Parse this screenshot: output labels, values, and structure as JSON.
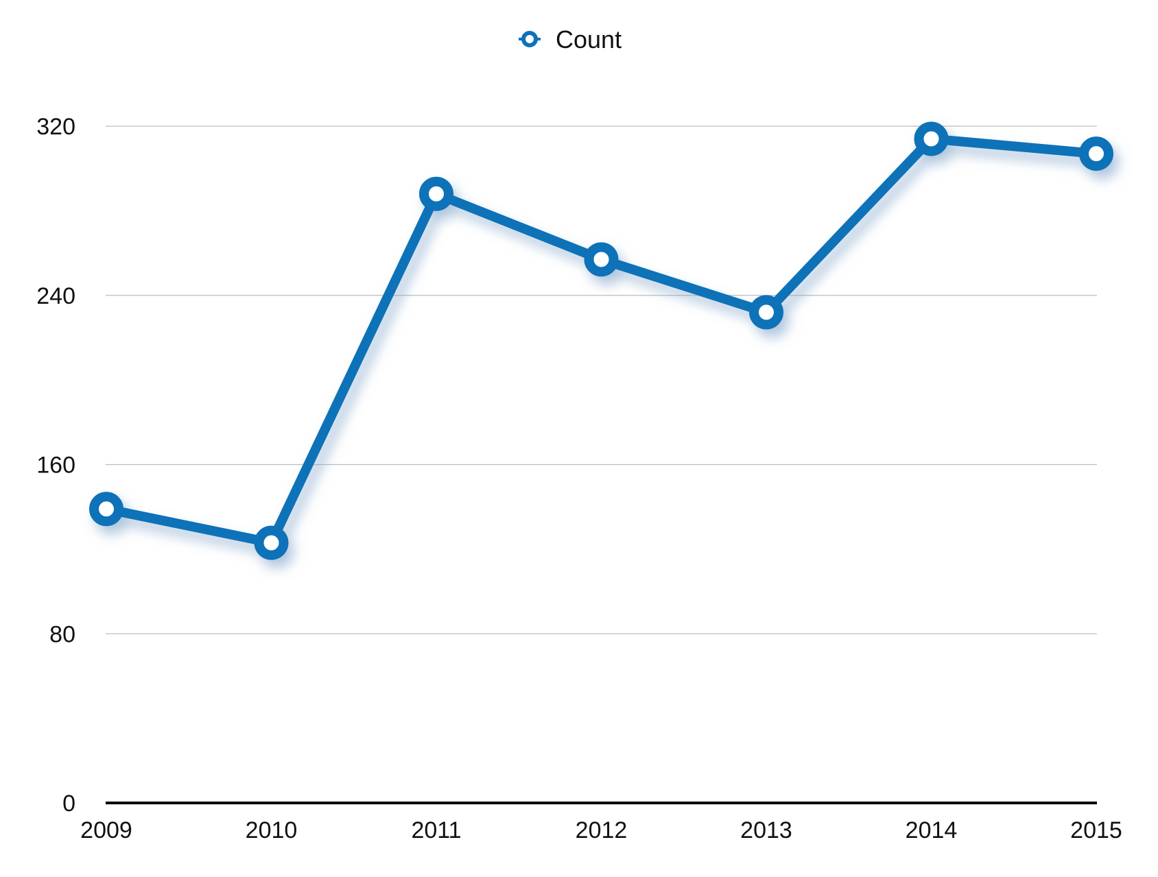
{
  "chart_data": {
    "type": "line",
    "categories": [
      "2009",
      "2010",
      "2011",
      "2012",
      "2013",
      "2014",
      "2015"
    ],
    "series": [
      {
        "name": "Count",
        "values": [
          139,
          123,
          288,
          257,
          232,
          314,
          307
        ],
        "color": "#0f72b8"
      }
    ],
    "y_ticks": [
      "0",
      "80",
      "160",
      "240",
      "320"
    ],
    "ylim": [
      0,
      320
    ],
    "grid": true,
    "legend_position": "top-center",
    "xlabel": "",
    "ylabel": "",
    "title": ""
  }
}
